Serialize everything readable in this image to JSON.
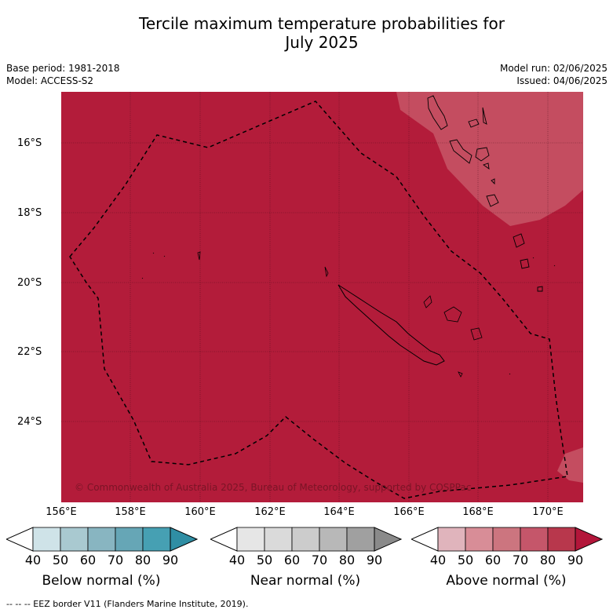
{
  "title_line1": "Tercile maximum temperature probabilities for",
  "title_line2": "July 2025",
  "meta_left": {
    "base_period": "Base period: 1981-2018",
    "model": "Model: ACCESS-S2"
  },
  "meta_right": {
    "model_run": "Model run: 02/06/2025",
    "issued": "Issued: 04/06/2025"
  },
  "map": {
    "y_tick_labels": [
      "16°S",
      "18°S",
      "20°S",
      "22°S",
      "24°S"
    ],
    "x_tick_labels": [
      "156°E",
      "158°E",
      "160°E",
      "162°E",
      "164°E",
      "166°E",
      "168°E",
      "170°E"
    ],
    "copyright": "© Commonwealth of Australia 2025, Bureau of Meteorology, supported by COSPPac",
    "colors": {
      "above_80_90": "#b31c3a",
      "above_70_80": "#c44d60",
      "land_outline": "#000000"
    }
  },
  "legends": [
    {
      "title": "Below normal (%)",
      "ticks": [
        "40",
        "50",
        "60",
        "70",
        "80",
        "90"
      ],
      "colors": [
        "#ffffff",
        "#cfe3e8",
        "#a9c9d0",
        "#88b5c1",
        "#66a6b6",
        "#46a0b3",
        "#2f8ea4"
      ]
    },
    {
      "title": "Near normal (%)",
      "ticks": [
        "40",
        "50",
        "60",
        "70",
        "80",
        "90"
      ],
      "colors": [
        "#ffffff",
        "#e6e6e6",
        "#dadada",
        "#cccccc",
        "#b8b8b8",
        "#a0a0a0",
        "#8a8a8a"
      ]
    },
    {
      "title": "Above normal (%)",
      "ticks": [
        "40",
        "50",
        "60",
        "70",
        "80",
        "90"
      ],
      "colors": [
        "#ffffff",
        "#e0b4bc",
        "#d88d97",
        "#cc757f",
        "#c5566a",
        "#b8374c",
        "#b3163a"
      ]
    }
  ],
  "footnote": "-- -- -- EEZ border V11 (Flanders Marine Institute, 2019)."
}
